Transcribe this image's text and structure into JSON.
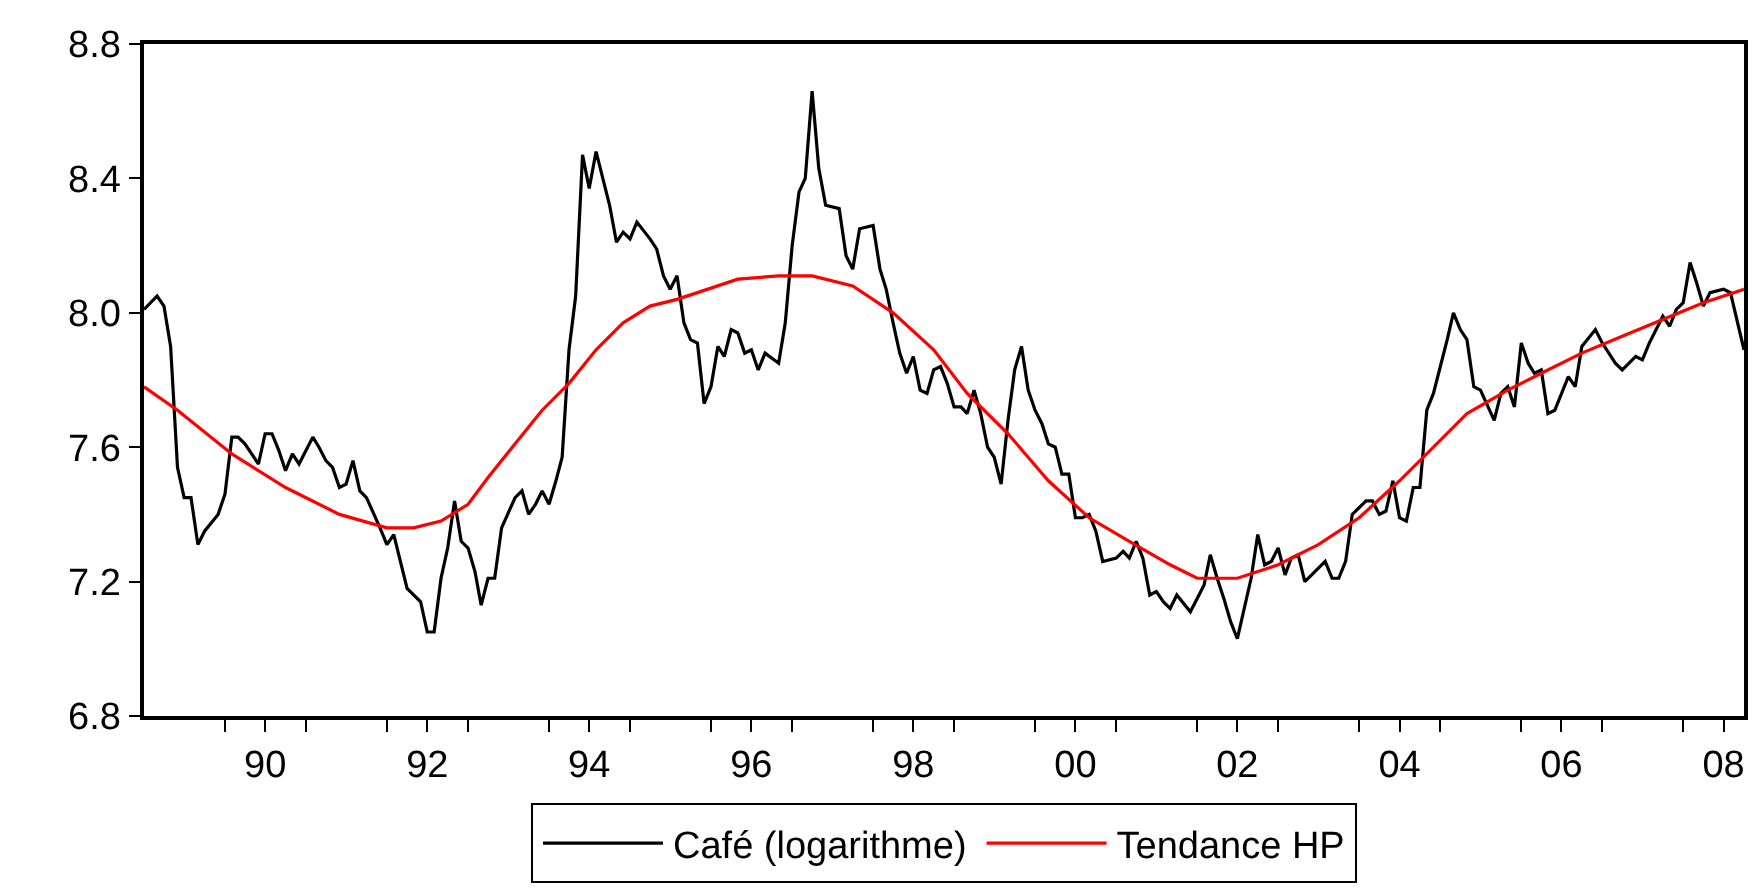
{
  "chart_data": {
    "type": "line",
    "xlim": [
      "1989-01",
      "2008-10"
    ],
    "xticks": [
      {
        "value": "1990",
        "label": null
      },
      {
        "value": "1990-07",
        "label": "90"
      },
      {
        "value": "1991",
        "label": null
      },
      {
        "value": "1992",
        "label": null
      },
      {
        "value": "1992-07",
        "label": "92"
      },
      {
        "value": "1993",
        "label": null
      },
      {
        "value": "1994",
        "label": null
      },
      {
        "value": "1994-07",
        "label": "94"
      },
      {
        "value": "1995",
        "label": null
      },
      {
        "value": "1996",
        "label": null
      },
      {
        "value": "1996-07",
        "label": "96"
      },
      {
        "value": "1997",
        "label": null
      },
      {
        "value": "1998",
        "label": null
      },
      {
        "value": "1998-07",
        "label": "98"
      },
      {
        "value": "1999",
        "label": null
      },
      {
        "value": "2000",
        "label": null
      },
      {
        "value": "2000-07",
        "label": "00"
      },
      {
        "value": "2001",
        "label": null
      },
      {
        "value": "2002",
        "label": null
      },
      {
        "value": "2002-07",
        "label": "02"
      },
      {
        "value": "2003",
        "label": null
      },
      {
        "value": "2004",
        "label": null
      },
      {
        "value": "2004-07",
        "label": "04"
      },
      {
        "value": "2005",
        "label": null
      },
      {
        "value": "2006",
        "label": null
      },
      {
        "value": "2006-07",
        "label": "06"
      },
      {
        "value": "2007",
        "label": null
      },
      {
        "value": "2008",
        "label": null
      },
      {
        "value": "2008-07",
        "label": "08"
      }
    ],
    "ylim": [
      6.8,
      8.8
    ],
    "yticks": [
      {
        "value": 6.8,
        "label": "6.8"
      },
      {
        "value": 7.2,
        "label": "7.2"
      },
      {
        "value": 7.6,
        "label": "7.6"
      },
      {
        "value": 8.0,
        "label": "8.0"
      },
      {
        "value": 8.4,
        "label": "8.4"
      },
      {
        "value": 8.8,
        "label": "8.8"
      }
    ],
    "grid": false,
    "legend": "bottom",
    "marker": "none",
    "line_style": "solid",
    "series": [
      {
        "name": "Café (logarithme)",
        "color": "#000000",
        "x": [
          "1989-01",
          "1989-03",
          "1989-04",
          "1989-05",
          "1989-06",
          "1989-07",
          "1989-08",
          "1989-09",
          "1989-10",
          "1989-12",
          "1990-01",
          "1990-02",
          "1990-03",
          "1990-04",
          "1990-06",
          "1990-07",
          "1990-08",
          "1990-09",
          "1990-10",
          "1990-11",
          "1990-12",
          "1991-02",
          "1991-03",
          "1991-04",
          "1991-05",
          "1991-06",
          "1991-07",
          "1991-08",
          "1991-09",
          "1991-10",
          "1991-12",
          "1992-01",
          "1992-02",
          "1992-04",
          "1992-06",
          "1992-07",
          "1992-08",
          "1992-09",
          "1992-10",
          "1992-11",
          "1992-12",
          "1993-01",
          "1993-02",
          "1993-03",
          "1993-04",
          "1993-05",
          "1993-06",
          "1993-08",
          "1993-09",
          "1993-10",
          "1993-11",
          "1993-12",
          "1994-01",
          "1994-02",
          "1994-03",
          "1994-04",
          "1994-05",
          "1994-06",
          "1994-07",
          "1994-08",
          "1994-10",
          "1994-11",
          "1994-12",
          "1995-01",
          "1995-02",
          "1995-04",
          "1995-05",
          "1995-06",
          "1995-07",
          "1995-08",
          "1995-09",
          "1995-10",
          "1995-11",
          "1995-12",
          "1996-01",
          "1996-02",
          "1996-03",
          "1996-04",
          "1996-05",
          "1996-06",
          "1996-07",
          "1996-08",
          "1996-09",
          "1996-11",
          "1996-12",
          "1997-01",
          "1997-02",
          "1997-03",
          "1997-04",
          "1997-05",
          "1997-06",
          "1997-08",
          "1997-09",
          "1997-10",
          "1997-11",
          "1998-01",
          "1998-02",
          "1998-03",
          "1998-04",
          "1998-05",
          "1998-06",
          "1998-07",
          "1998-08",
          "1998-09",
          "1998-10",
          "1998-11",
          "1998-12",
          "1999-01",
          "1999-02",
          "1999-03",
          "1999-04",
          "1999-05",
          "1999-06",
          "1999-07",
          "1999-08",
          "1999-09",
          "1999-10",
          "1999-11",
          "1999-12",
          "2000-01",
          "2000-02",
          "2000-03",
          "2000-04",
          "2000-05",
          "2000-06",
          "2000-07",
          "2000-08",
          "2000-09",
          "2000-10",
          "2000-11",
          "2001-01",
          "2001-02",
          "2001-03",
          "2001-04",
          "2001-05",
          "2001-06",
          "2001-07",
          "2001-08",
          "2001-09",
          "2001-10",
          "2001-12",
          "2002-01",
          "2002-02",
          "2002-03",
          "2002-04",
          "2002-05",
          "2002-06",
          "2002-07",
          "2002-09",
          "2002-10",
          "2002-11",
          "2002-12",
          "2003-01",
          "2003-02",
          "2003-03",
          "2003-04",
          "2003-05",
          "2003-06",
          "2003-08",
          "2003-09",
          "2003-10",
          "2003-11",
          "2003-12",
          "2004-02",
          "2004-03",
          "2004-04",
          "2004-05",
          "2004-06",
          "2004-07",
          "2004-08",
          "2004-09",
          "2004-10",
          "2004-11",
          "2004-12",
          "2005-02",
          "2005-03",
          "2005-04",
          "2005-05",
          "2005-06",
          "2005-07",
          "2005-09",
          "2005-10",
          "2005-11",
          "2005-12",
          "2006-01",
          "2006-02",
          "2006-03",
          "2006-04",
          "2006-05",
          "2006-06",
          "2006-08",
          "2006-09",
          "2006-10",
          "2006-12",
          "2007-01",
          "2007-03",
          "2007-04",
          "2007-06",
          "2007-07",
          "2007-08",
          "2007-10",
          "2007-11",
          "2007-12",
          "2008-01",
          "2008-02",
          "2008-03",
          "2008-04",
          "2008-05",
          "2008-07",
          "2008-08",
          "2008-10"
        ],
        "values": [
          8.01,
          8.05,
          8.02,
          7.9,
          7.54,
          7.45,
          7.45,
          7.31,
          7.35,
          7.4,
          7.46,
          7.63,
          7.63,
          7.61,
          7.55,
          7.64,
          7.64,
          7.59,
          7.53,
          7.58,
          7.55,
          7.63,
          7.6,
          7.56,
          7.54,
          7.48,
          7.49,
          7.56,
          7.47,
          7.45,
          7.36,
          7.31,
          7.34,
          7.18,
          7.14,
          7.05,
          7.05,
          7.21,
          7.3,
          7.44,
          7.32,
          7.3,
          7.23,
          7.13,
          7.21,
          7.21,
          7.36,
          7.45,
          7.47,
          7.4,
          7.43,
          7.47,
          7.43,
          7.5,
          7.57,
          7.89,
          8.05,
          8.47,
          8.37,
          8.48,
          8.32,
          8.21,
          8.24,
          8.22,
          8.27,
          8.22,
          8.19,
          8.11,
          8.07,
          8.11,
          7.97,
          7.92,
          7.91,
          7.73,
          7.78,
          7.9,
          7.87,
          7.95,
          7.94,
          7.88,
          7.89,
          7.83,
          7.88,
          7.85,
          7.97,
          8.2,
          8.36,
          8.4,
          8.66,
          8.43,
          8.32,
          8.31,
          8.17,
          8.13,
          8.25,
          8.26,
          8.13,
          8.07,
          7.97,
          7.88,
          7.82,
          7.87,
          7.77,
          7.76,
          7.83,
          7.84,
          7.79,
          7.72,
          7.72,
          7.7,
          7.77,
          7.7,
          7.6,
          7.57,
          7.49,
          7.68,
          7.83,
          7.9,
          7.77,
          7.71,
          7.67,
          7.61,
          7.6,
          7.52,
          7.52,
          7.39,
          7.39,
          7.4,
          7.35,
          7.26,
          7.27,
          7.29,
          7.27,
          7.32,
          7.27,
          7.16,
          7.17,
          7.14,
          7.12,
          7.16,
          7.11,
          7.15,
          7.19,
          7.28,
          7.21,
          7.15,
          7.08,
          7.03,
          7.21,
          7.34,
          7.25,
          7.26,
          7.3,
          7.22,
          7.27,
          7.28,
          7.2,
          7.22,
          7.26,
          7.21,
          7.21,
          7.26,
          7.4,
          7.44,
          7.44,
          7.4,
          7.41,
          7.5,
          7.39,
          7.38,
          7.48,
          7.48,
          7.71,
          7.76,
          7.92,
          8.0,
          7.95,
          7.92,
          7.78,
          7.77,
          7.68,
          7.76,
          7.78,
          7.72,
          7.91,
          7.85,
          7.82,
          7.83,
          7.7,
          7.71,
          7.81,
          7.78,
          7.9,
          7.95,
          7.91,
          7.85,
          7.83,
          7.87,
          7.86,
          7.91,
          7.99,
          7.96,
          8.01,
          8.03,
          8.15,
          8.09,
          8.02,
          8.06,
          8.07,
          8.06,
          7.89
        ]
      },
      {
        "name": "Tendance HP",
        "color": "#ff0000",
        "x": [
          "1989-01",
          "1989-06",
          "1990-02",
          "1990-10",
          "1991-06",
          "1992-01",
          "1992-05",
          "1992-09",
          "1993-01",
          "1993-04",
          "1993-08",
          "1993-12",
          "1994-04",
          "1994-08",
          "1994-12",
          "1995-04",
          "1995-08",
          "1995-11",
          "1996-05",
          "1996-11",
          "1997-04",
          "1997-10",
          "1998-04",
          "1998-10",
          "1999-03",
          "1999-09",
          "2000-03",
          "2000-09",
          "2001-03",
          "2001-09",
          "2002-01",
          "2002-07",
          "2003-01",
          "2003-07",
          "2004-01",
          "2004-07",
          "2004-12",
          "2005-05",
          "2005-11",
          "2006-04",
          "2006-10",
          "2007-04",
          "2007-10",
          "2008-04",
          "2008-10"
        ],
        "values": [
          7.78,
          7.71,
          7.58,
          7.48,
          7.4,
          7.36,
          7.36,
          7.38,
          7.43,
          7.51,
          7.61,
          7.71,
          7.79,
          7.89,
          7.97,
          8.02,
          8.04,
          8.06,
          8.1,
          8.11,
          8.11,
          8.08,
          8.0,
          7.89,
          7.76,
          7.64,
          7.5,
          7.39,
          7.32,
          7.25,
          7.21,
          7.21,
          7.25,
          7.31,
          7.39,
          7.5,
          7.6,
          7.7,
          7.77,
          7.82,
          7.88,
          7.93,
          7.98,
          8.03,
          8.07
        ]
      }
    ]
  }
}
